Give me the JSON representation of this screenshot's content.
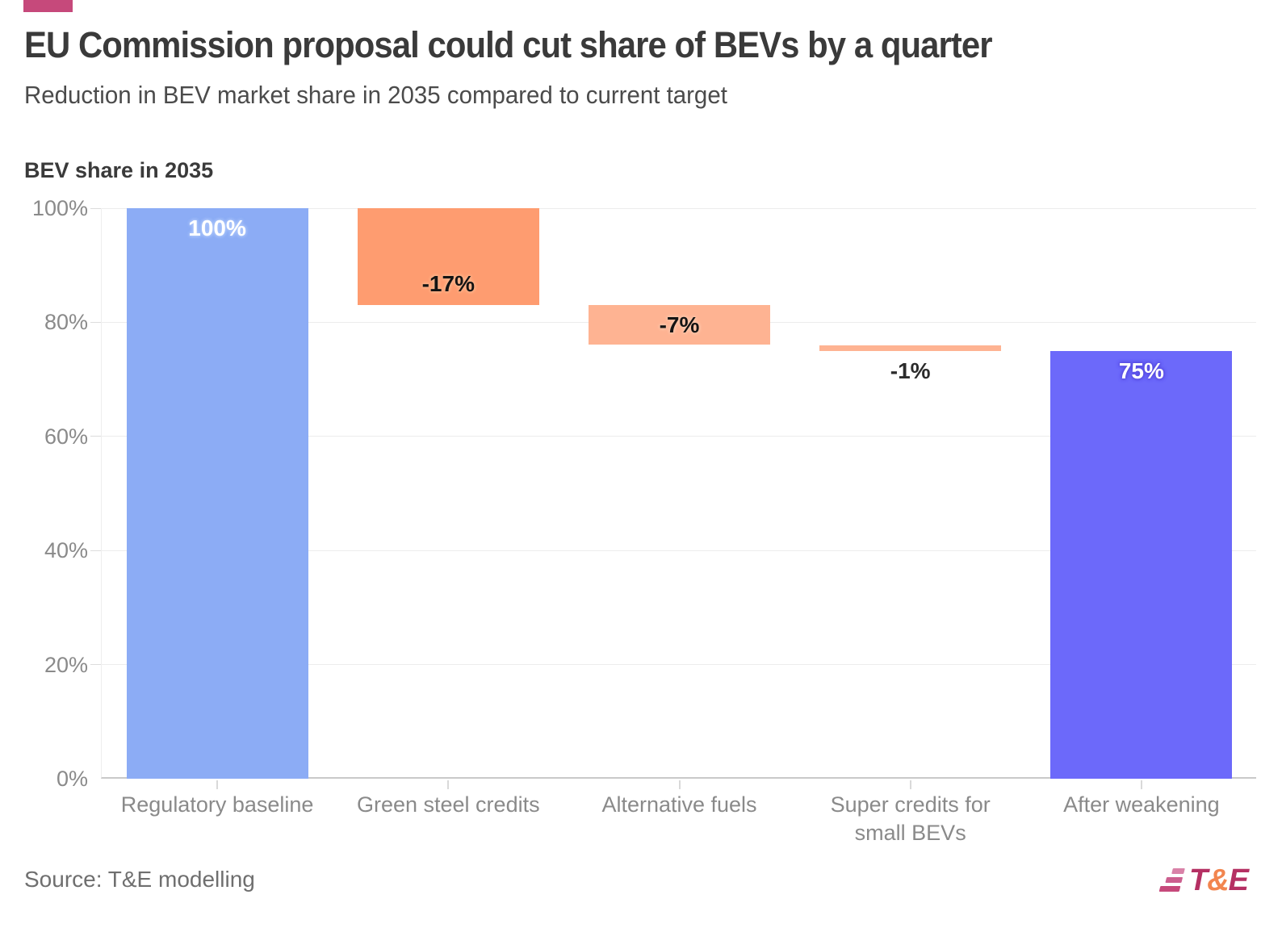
{
  "accent_color": "#c6497b",
  "header": {
    "title": "EU Commission proposal could cut share of BEVs by a quarter",
    "subtitle": "Reduction in BEV market share in 2035 compared to current target"
  },
  "chart_data": {
    "type": "bar",
    "subtype": "waterfall",
    "title": "EU Commission proposal could cut share of BEVs by a quarter",
    "subtitle": "Reduction in BEV market share in 2035 compared to current target",
    "axis_title": "BEV share in 2035",
    "ylabel": "BEV share in 2035",
    "ylim": [
      0,
      100
    ],
    "grid": "horizontal-solid-light",
    "legend": "none",
    "y_ticks": [
      {
        "label": "100%",
        "value": 100
      },
      {
        "label": "80%",
        "value": 80
      },
      {
        "label": "60%",
        "value": 60
      },
      {
        "label": "40%",
        "value": 40
      },
      {
        "label": "20%",
        "value": 20
      },
      {
        "label": "0%",
        "value": 0
      }
    ],
    "categories": [
      "Regulatory baseline",
      "Green steel credits",
      "Alternative fuels",
      "Super credits for small BEVs",
      "After weakening"
    ],
    "bars": [
      {
        "category": "Regulatory baseline",
        "label": "100%",
        "start": 0,
        "end": 100,
        "delta": 100,
        "color": "#8cacf5",
        "label_color": "#ffffff",
        "halo_color": "#aac4fa",
        "label_pos": "top"
      },
      {
        "category": "Green steel credits",
        "label": "-17%",
        "start": 83,
        "end": 100,
        "delta": -17,
        "color": "#fe9c70",
        "label_color": "#141414",
        "halo_color": "#ffb68d",
        "label_pos": "bottom"
      },
      {
        "category": "Alternative fuels",
        "label": "-7%",
        "start": 76,
        "end": 83,
        "delta": -7,
        "color": "#feb392",
        "label_color": "#141414",
        "halo_color": "#ffc9ae",
        "label_pos": "middle"
      },
      {
        "category": "Super credits for small BEVs",
        "label": "-1%",
        "start": 75,
        "end": 76,
        "delta": -1,
        "color": "#feb392",
        "label_color": "#2b2b2b",
        "halo_color": "#ffffff",
        "label_pos": "below"
      },
      {
        "category": "After weakening",
        "label": "75%",
        "start": 0,
        "end": 75,
        "delta": 75,
        "color": "#6c69fa",
        "label_color": "#ffffff",
        "halo_color": "#584ce2",
        "label_pos": "top"
      }
    ]
  },
  "footer": {
    "source": "Source: T&E modelling",
    "logo": {
      "t": "T",
      "amp": "&",
      "e": "E",
      "t_color": "#b53063",
      "amp_color": "#f2854f",
      "e_color": "#b53063",
      "icon_colors": [
        "#d982a8",
        "#cc5f8f",
        "#c6497b"
      ]
    }
  }
}
